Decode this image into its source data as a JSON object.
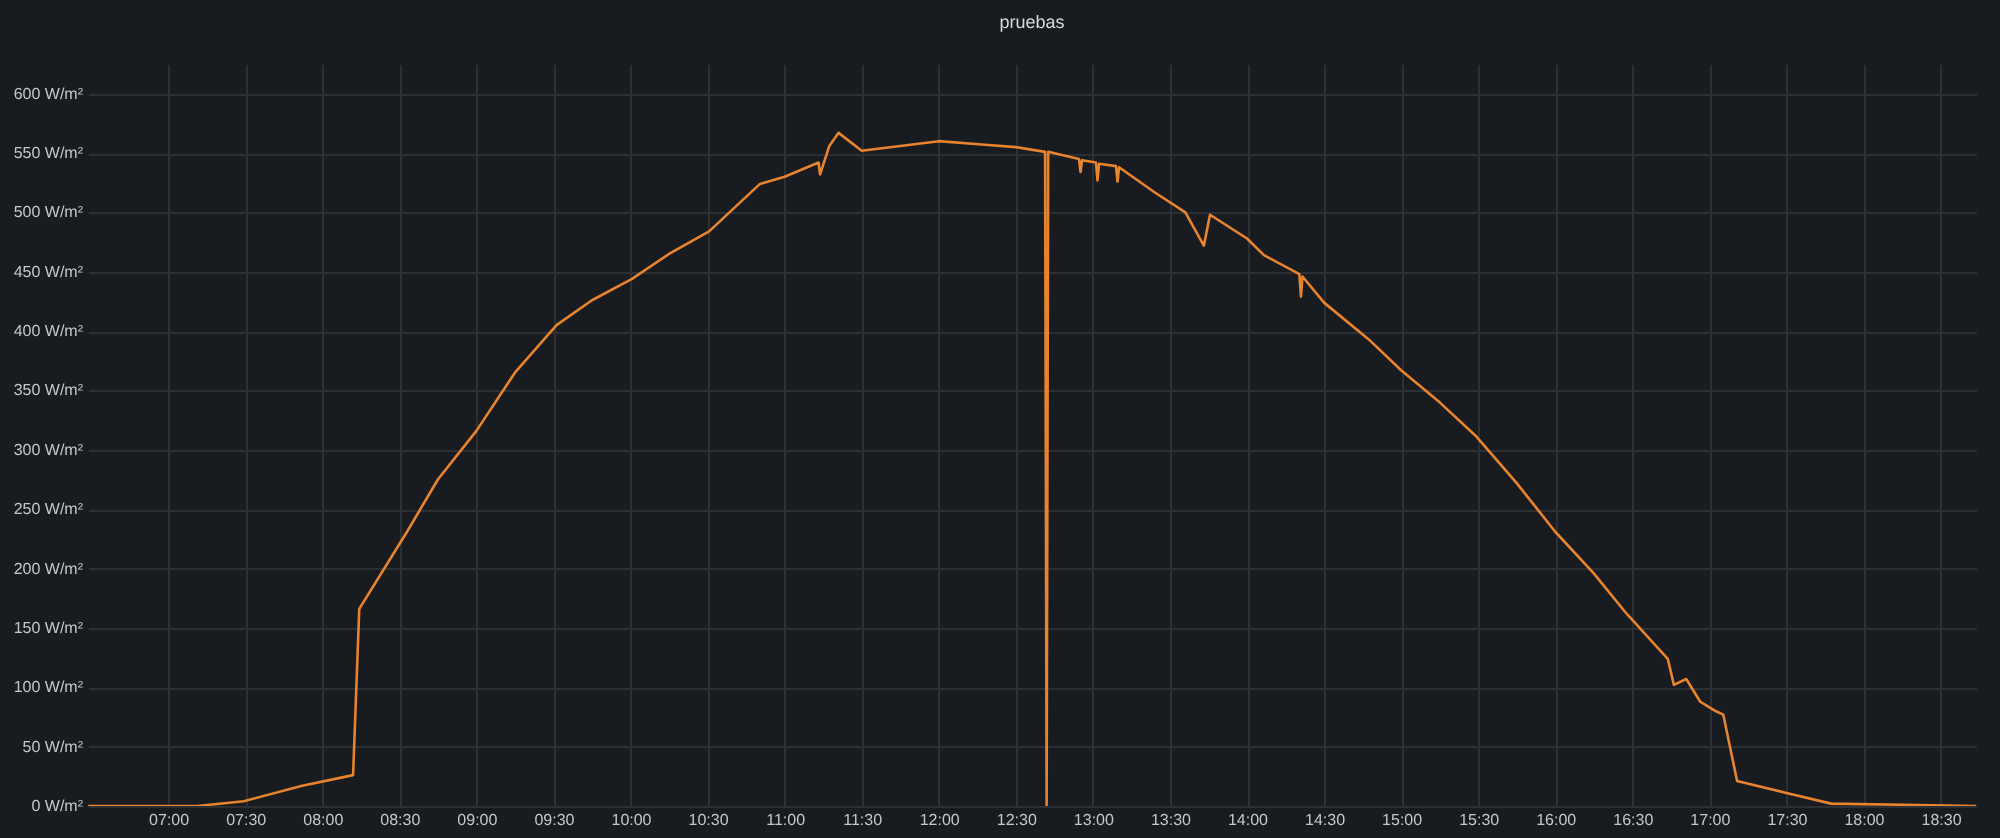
{
  "chart_data": {
    "type": "line",
    "title": "pruebas",
    "grid": true,
    "legend": false,
    "marker": "none",
    "line_style": "solid",
    "xlim": [
      6.48,
      18.73
    ],
    "xticks": [
      {
        "value": 7,
        "label": "07:00"
      },
      {
        "value": 7.5,
        "label": "07:30"
      },
      {
        "value": 8,
        "label": "08:00"
      },
      {
        "value": 8.5,
        "label": "08:30"
      },
      {
        "value": 9,
        "label": "09:00"
      },
      {
        "value": 9.5,
        "label": "09:30"
      },
      {
        "value": 10,
        "label": "10:00"
      },
      {
        "value": 10.5,
        "label": "10:30"
      },
      {
        "value": 11,
        "label": "11:00"
      },
      {
        "value": 11.5,
        "label": "11:30"
      },
      {
        "value": 12,
        "label": "12:00"
      },
      {
        "value": 12.5,
        "label": "12:30"
      },
      {
        "value": 13,
        "label": "13:00"
      },
      {
        "value": 13.5,
        "label": "13:30"
      },
      {
        "value": 14,
        "label": "14:00"
      },
      {
        "value": 14.5,
        "label": "14:30"
      },
      {
        "value": 15,
        "label": "15:00"
      },
      {
        "value": 15.5,
        "label": "15:30"
      },
      {
        "value": 16,
        "label": "16:00"
      },
      {
        "value": 16.5,
        "label": "16:30"
      },
      {
        "value": 17,
        "label": "17:00"
      },
      {
        "value": 17.5,
        "label": "17:30"
      },
      {
        "value": 18,
        "label": "18:00"
      },
      {
        "value": 18.5,
        "label": "18:30"
      }
    ],
    "ylim": [
      0,
      625
    ],
    "yticks": [
      {
        "value": 0,
        "label": "0 W/m²"
      },
      {
        "value": 50,
        "label": "50 W/m²"
      },
      {
        "value": 100,
        "label": "100 W/m²"
      },
      {
        "value": 150,
        "label": "150 W/m²"
      },
      {
        "value": 200,
        "label": "200 W/m²"
      },
      {
        "value": 250,
        "label": "250 W/m²"
      },
      {
        "value": 300,
        "label": "300 W/m²"
      },
      {
        "value": 350,
        "label": "350 W/m²"
      },
      {
        "value": 400,
        "label": "400 W/m²"
      },
      {
        "value": 450,
        "label": "450 W/m²"
      },
      {
        "value": 500,
        "label": "500 W/m²"
      },
      {
        "value": 550,
        "label": "550 W/m²"
      },
      {
        "value": 600,
        "label": "600 W/m²"
      }
    ],
    "series": [
      {
        "color": "#e8832e",
        "x": [
          6.48,
          7.19,
          7.49,
          7.87,
          8.2,
          8.24,
          8.55,
          8.75,
          9.0,
          9.25,
          9.52,
          9.75,
          10.01,
          10.25,
          10.51,
          10.84,
          11.0,
          11.22,
          11.23,
          11.29,
          11.35,
          11.5,
          12.0,
          12.3,
          12.5,
          12.69,
          12.7,
          12.71,
          12.91,
          12.92,
          12.93,
          13.02,
          13.03,
          13.04,
          13.15,
          13.16,
          13.17,
          13.4,
          13.6,
          13.72,
          13.76,
          14.0,
          14.11,
          14.34,
          14.35,
          14.36,
          14.5,
          14.79,
          15.0,
          15.25,
          15.49,
          15.75,
          16.0,
          16.25,
          16.45,
          16.73,
          16.77,
          16.85,
          16.94,
          17.04,
          17.09,
          17.18,
          17.5,
          17.79,
          18.73
        ],
        "values": [
          0,
          0,
          4,
          17,
          26,
          166,
          231,
          275,
          316,
          365,
          405,
          426,
          444,
          465,
          484,
          524,
          530,
          542,
          532,
          556,
          567,
          552,
          560,
          557,
          555,
          551,
          0,
          551,
          545,
          534,
          544,
          542,
          527,
          541,
          539,
          526,
          538,
          517,
          500,
          472,
          498,
          478,
          464,
          448,
          429,
          446,
          424,
          393,
          367,
          340,
          311,
          272,
          231,
          196,
          164,
          124,
          102,
          107,
          88,
          80,
          77,
          21,
          11,
          2,
          0
        ]
      }
    ]
  }
}
